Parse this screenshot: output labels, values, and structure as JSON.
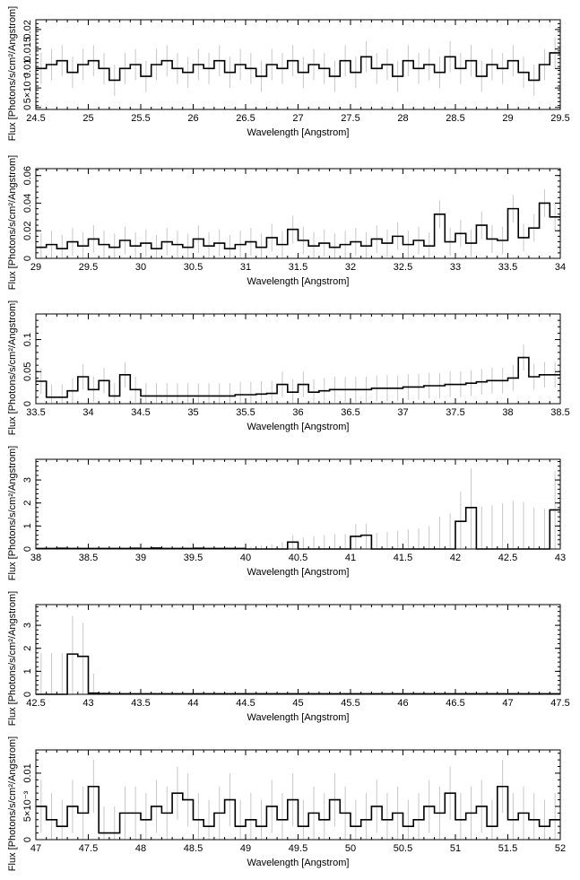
{
  "chart_data": [
    {
      "type": "line",
      "xlabel": "Wavelength [Angstrom]",
      "ylabel": "Flux [Photons/s/cm²/Angstrom]",
      "xlim": [
        24.5,
        29.5
      ],
      "ylim": [
        -0.0005,
        0.0225
      ],
      "bin_width": 0.1,
      "xticks": [
        "24.5",
        "25",
        "25.5",
        "26",
        "26.5",
        "27",
        "27.5",
        "28",
        "28.5",
        "29",
        "29.5"
      ],
      "yticks": [
        {
          "v": 0,
          "t": "0"
        },
        {
          "v": 0.005,
          "t": "5×10⁻³"
        },
        {
          "v": 0.01,
          "t": "0.01"
        },
        {
          "v": 0.015,
          "t": "0.015"
        },
        {
          "v": 0.02,
          "t": "0.02"
        }
      ],
      "values": [
        0.01,
        0.011,
        0.012,
        0.009,
        0.011,
        0.012,
        0.01,
        0.007,
        0.01,
        0.011,
        0.008,
        0.011,
        0.012,
        0.01,
        0.009,
        0.011,
        0.01,
        0.012,
        0.009,
        0.011,
        0.01,
        0.008,
        0.011,
        0.01,
        0.012,
        0.009,
        0.011,
        0.01,
        0.008,
        0.012,
        0.009,
        0.013,
        0.01,
        0.011,
        0.008,
        0.012,
        0.01,
        0.011,
        0.009,
        0.013,
        0.01,
        0.012,
        0.008,
        0.011,
        0.01,
        0.012,
        0.009,
        0.007,
        0.011,
        0.014
      ],
      "error": 0.004
    },
    {
      "type": "line",
      "xlabel": "Wavelength [Angstrom]",
      "ylabel": "Flux [Photons/s/cm²/Angstrom]",
      "xlim": [
        29,
        34
      ],
      "ylim": [
        0,
        0.065
      ],
      "bin_width": 0.1,
      "xticks": [
        "29",
        "29.5",
        "30",
        "30.5",
        "31",
        "31.5",
        "32",
        "32.5",
        "33",
        "33.5",
        "34"
      ],
      "yticks": [
        {
          "v": 0,
          "t": "0"
        },
        {
          "v": 0.02,
          "t": "0.02"
        },
        {
          "v": 0.04,
          "t": "0.04"
        },
        {
          "v": 0.06,
          "t": "0.06"
        }
      ],
      "values": [
        0.008,
        0.01,
        0.007,
        0.012,
        0.009,
        0.014,
        0.01,
        0.008,
        0.013,
        0.009,
        0.011,
        0.007,
        0.012,
        0.01,
        0.008,
        0.014,
        0.009,
        0.011,
        0.007,
        0.01,
        0.012,
        0.008,
        0.015,
        0.01,
        0.021,
        0.013,
        0.009,
        0.011,
        0.008,
        0.01,
        0.012,
        0.009,
        0.014,
        0.011,
        0.016,
        0.01,
        0.013,
        0.009,
        0.032,
        0.012,
        0.018,
        0.011,
        0.024,
        0.014,
        0.013,
        0.036,
        0.015,
        0.022,
        0.04,
        0.03
      ],
      "error": 0.01
    },
    {
      "type": "line",
      "xlabel": "Wavelength [Angstrom]",
      "ylabel": "Flux [Photons/s/cm²/Angstrom]",
      "xlim": [
        33.5,
        38.5
      ],
      "ylim": [
        0,
        0.14
      ],
      "bin_width": 0.1,
      "xticks": [
        "33.5",
        "34",
        "34.5",
        "35",
        "35.5",
        "36",
        "36.5",
        "37",
        "37.5",
        "38",
        "38.5"
      ],
      "yticks": [
        {
          "v": 0,
          "t": "0"
        },
        {
          "v": 0.05,
          "t": "0.05"
        },
        {
          "v": 0.1,
          "t": "0.1"
        }
      ],
      "values": [
        0.035,
        0.01,
        0.01,
        0.02,
        0.042,
        0.022,
        0.036,
        0.012,
        0.045,
        0.022,
        0.012,
        0.012,
        0.012,
        0.012,
        0.012,
        0.012,
        0.012,
        0.012,
        0.012,
        0.014,
        0.014,
        0.015,
        0.016,
        0.03,
        0.018,
        0.03,
        0.018,
        0.02,
        0.022,
        0.022,
        0.022,
        0.022,
        0.024,
        0.024,
        0.024,
        0.026,
        0.026,
        0.028,
        0.028,
        0.03,
        0.03,
        0.032,
        0.034,
        0.036,
        0.036,
        0.04,
        0.072,
        0.042,
        0.045,
        0.045
      ],
      "error": 0.02
    },
    {
      "type": "line",
      "xlabel": "Wavelength [Angstrom]",
      "ylabel": "Flux [Photons/s/cm²/Angstrom]",
      "xlim": [
        38,
        43
      ],
      "ylim": [
        0,
        3.9
      ],
      "bin_width": 0.1,
      "xticks": [
        "38",
        "38.5",
        "39",
        "39.5",
        "40",
        "40.5",
        "41",
        "41.5",
        "42",
        "42.5",
        "43"
      ],
      "yticks": [
        {
          "v": 0,
          "t": "0"
        },
        {
          "v": 1,
          "t": "1"
        },
        {
          "v": 2,
          "t": "2"
        },
        {
          "v": 3,
          "t": "3"
        }
      ],
      "values": [
        0.02,
        0.02,
        0.03,
        0.02,
        0.02,
        0.02,
        0.02,
        0.02,
        0.02,
        0.03,
        0.02,
        0.04,
        0.02,
        0.02,
        0.02,
        0.03,
        0.02,
        0.02,
        0.02,
        0.02,
        0,
        0,
        0,
        0,
        0.3,
        0,
        0,
        0,
        0,
        0,
        0.55,
        0.6,
        0,
        0,
        0,
        0,
        0,
        0,
        0,
        0,
        1.2,
        1.8,
        0,
        0,
        0,
        0,
        0,
        0,
        0,
        1.7
      ],
      "error_upper": [
        0.05,
        0.05,
        0.05,
        0.05,
        0.05,
        0.05,
        0.05,
        0.05,
        0.05,
        0.05,
        0.05,
        0.05,
        0.05,
        0.05,
        0.05,
        0.05,
        0.05,
        0.05,
        0.05,
        0.05,
        0.1,
        0.15,
        0.2,
        0.3,
        0.6,
        0.5,
        0.55,
        0.6,
        0.65,
        0.65,
        1.1,
        1.1,
        0.7,
        0.75,
        0.8,
        0.85,
        0.9,
        1.0,
        1.4,
        1.55,
        2.5,
        3.5,
        1.85,
        1.9,
        2.0,
        2.1,
        2.05,
        1.8,
        1.75,
        3.4
      ]
    },
    {
      "type": "line",
      "xlabel": "Wavelength [Angstrom]",
      "ylabel": "Flux [Photons/s/cm²/Angstrom]",
      "xlim": [
        42.5,
        47.5
      ],
      "ylim": [
        0,
        3.9
      ],
      "bin_width": 0.1,
      "xticks": [
        "42.5",
        "43",
        "43.5",
        "44",
        "44.5",
        "45",
        "45.5",
        "46",
        "46.5",
        "47",
        "47.5"
      ],
      "yticks": [
        {
          "v": 0,
          "t": "0"
        },
        {
          "v": 1,
          "t": "1"
        },
        {
          "v": 2,
          "t": "2"
        },
        {
          "v": 3,
          "t": "3"
        }
      ],
      "values": [
        0,
        0,
        0,
        1.75,
        1.65,
        0.05,
        0.03,
        0.02,
        0.02,
        0.02,
        0.02,
        0.02,
        0.02,
        0.02,
        0.02,
        0.02,
        0.02,
        0.02,
        0.02,
        0.02,
        0.02,
        0.02,
        0.02,
        0.02,
        0.02,
        0.02,
        0.02,
        0.02,
        0.02,
        0.02,
        0.02,
        0.02,
        0.02,
        0.02,
        0.02,
        0.02,
        0.02,
        0.02,
        0.02,
        0.02,
        0.02,
        0.02,
        0.02,
        0.02,
        0.02,
        0.02,
        0.02,
        0.02,
        0.02,
        0.02
      ],
      "error_upper": [
        1.8,
        1.8,
        1.8,
        3.4,
        3.1,
        0.9,
        0.1,
        0.05,
        0.05,
        0.05,
        0.05,
        0.05,
        0.05,
        0.05,
        0.05,
        0.05,
        0.05,
        0.05,
        0.05,
        0.05,
        0.05,
        0.05,
        0.05,
        0.05,
        0.05,
        0.05,
        0.05,
        0.05,
        0.05,
        0.05,
        0.05,
        0.05,
        0.05,
        0.05,
        0.05,
        0.05,
        0.05,
        0.05,
        0.05,
        0.05,
        0.05,
        0.05,
        0.05,
        0.05,
        0.05,
        0.05,
        0.05,
        0.05,
        0.05,
        0.05
      ]
    },
    {
      "type": "line",
      "xlabel": "Wavelength [Angstrom]",
      "ylabel": "Flux [Photons/s/cm²/Angstrom]",
      "xlim": [
        47,
        52
      ],
      "ylim": [
        0,
        0.0135
      ],
      "bin_width": 0.1,
      "xticks": [
        "47",
        "47.5",
        "48",
        "48.5",
        "49",
        "49.5",
        "50",
        "50.5",
        "51",
        "51.5",
        "52"
      ],
      "yticks": [
        {
          "v": 0,
          "t": "0"
        },
        {
          "v": 0.005,
          "t": "5×10⁻³"
        },
        {
          "v": 0.01,
          "t": "0.01"
        }
      ],
      "values": [
        0.005,
        0.003,
        0.002,
        0.005,
        0.004,
        0.008,
        0.001,
        0.001,
        0.004,
        0.004,
        0.003,
        0.005,
        0.004,
        0.007,
        0.006,
        0.003,
        0.002,
        0.004,
        0.006,
        0.002,
        0.003,
        0.002,
        0.005,
        0.003,
        0.006,
        0.002,
        0.004,
        0.003,
        0.006,
        0.004,
        0.002,
        0.003,
        0.005,
        0.003,
        0.004,
        0.002,
        0.003,
        0.005,
        0.004,
        0.007,
        0.003,
        0.004,
        0.005,
        0.002,
        0.008,
        0.003,
        0.004,
        0.003,
        0.002,
        0.003
      ],
      "error": 0.004
    }
  ]
}
